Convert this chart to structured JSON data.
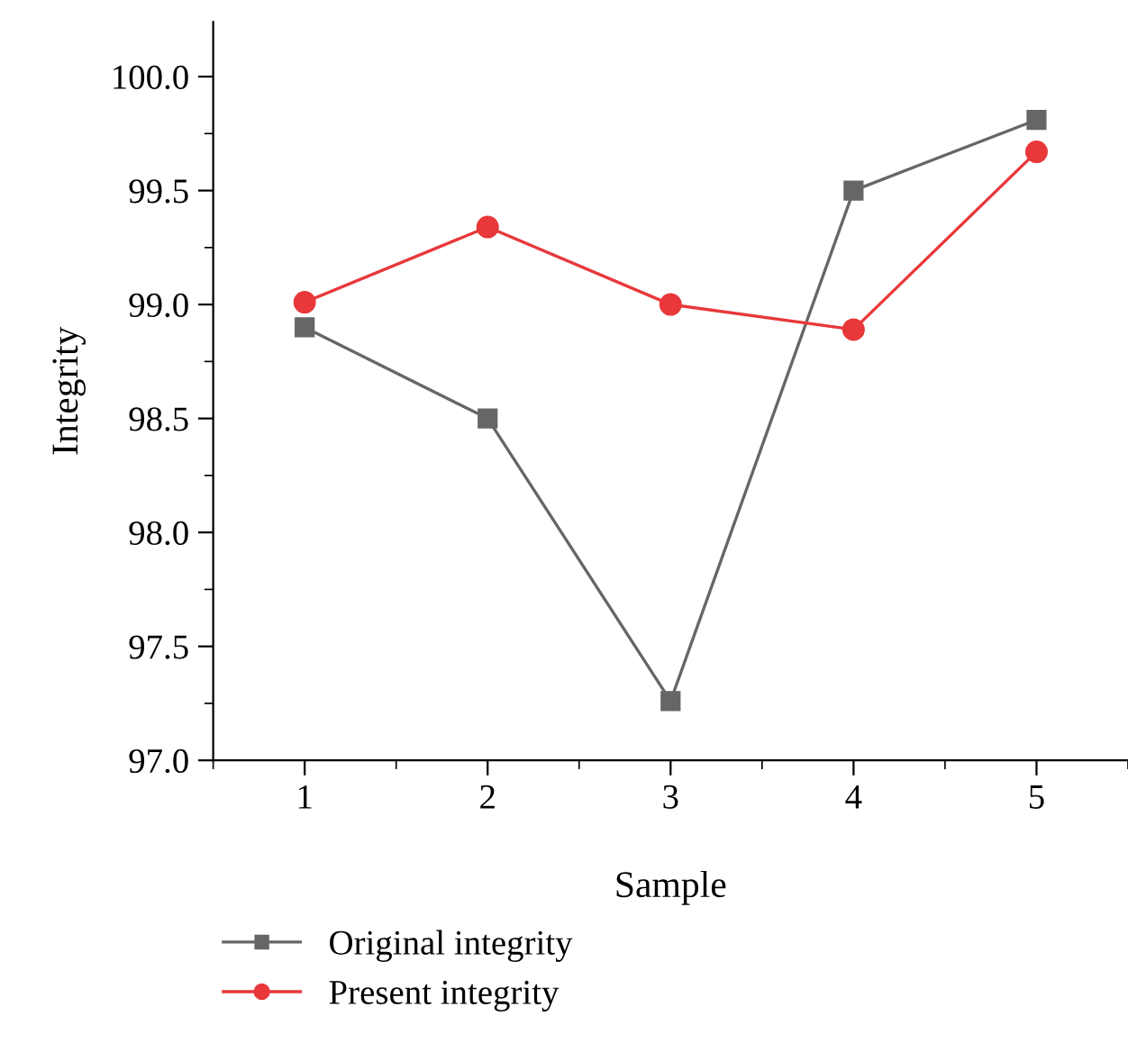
{
  "chart_data": {
    "type": "line",
    "xlabel": "Sample",
    "ylabel": "Integrity",
    "x": [
      1,
      2,
      3,
      4,
      5
    ],
    "series": [
      {
        "name": "Original integrity",
        "color": "#666666",
        "marker": "square",
        "values": [
          98.9,
          98.5,
          97.26,
          99.5,
          99.81
        ]
      },
      {
        "name": "Present integrity",
        "color": "#e8383a",
        "marker": "circle",
        "values": [
          99.01,
          99.34,
          99.0,
          98.89,
          99.67
        ]
      }
    ],
    "xlim": [
      0.5,
      5.5
    ],
    "xticks": [
      1,
      2,
      3,
      4,
      5
    ],
    "ylim": [
      97.0,
      100.24
    ],
    "yticks": [
      {
        "value": 97.0,
        "label": "97.0"
      },
      {
        "value": 97.5,
        "label": "97.5"
      },
      {
        "value": 98.0,
        "label": "98.0"
      },
      {
        "value": 98.5,
        "label": "98.5"
      },
      {
        "value": 99.0,
        "label": "99.0"
      },
      {
        "value": 99.5,
        "label": "99.5"
      },
      {
        "value": 100.0,
        "label": "100.0"
      }
    ],
    "grid": false,
    "legend": "bottom left",
    "line_style": "solid"
  }
}
